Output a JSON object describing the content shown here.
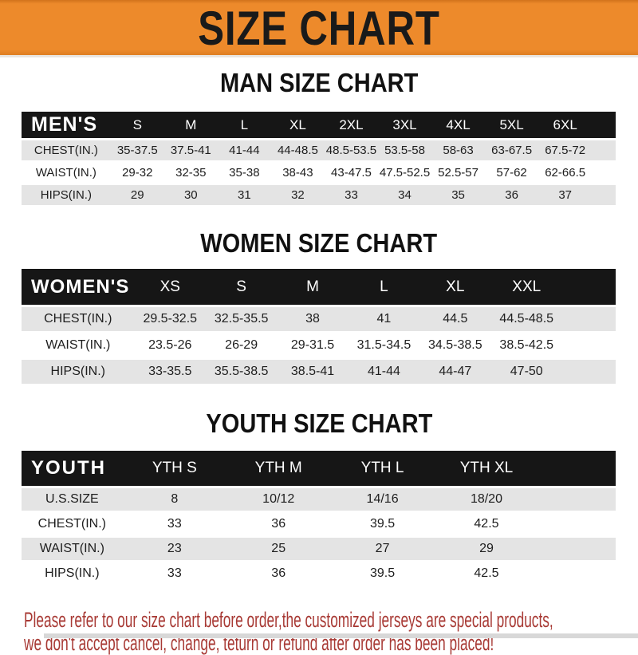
{
  "banner": {
    "title": "SIZE CHART"
  },
  "sections": {
    "man": {
      "heading": "MAN SIZE CHART",
      "table": {
        "label": "MEN'S",
        "columns": [
          "S",
          "M",
          "L",
          "XL",
          "2XL",
          "3XL",
          "4XL",
          "5XL",
          "6XL"
        ],
        "rows": [
          {
            "label": "CHEST(IN.)",
            "values": [
              "35-37.5",
              "37.5-41",
              "41-44",
              "44-48.5",
              "48.5-53.5",
              "53.5-58",
              "58-63",
              "63-67.5",
              "67.5-72"
            ]
          },
          {
            "label": "WAIST(IN.)",
            "values": [
              "29-32",
              "32-35",
              "35-38",
              "38-43",
              "43-47.5",
              "47.5-52.5",
              "52.5-57",
              "57-62",
              "62-66.5"
            ]
          },
          {
            "label": "HIPS(IN.)",
            "values": [
              "29",
              "30",
              "31",
              "32",
              "33",
              "34",
              "35",
              "36",
              "37"
            ]
          }
        ]
      }
    },
    "women": {
      "heading": "WOMEN SIZE CHART",
      "table": {
        "label": "WOMEN'S",
        "columns": [
          "XS",
          "S",
          "M",
          "L",
          "XL",
          "XXL"
        ],
        "rows": [
          {
            "label": "CHEST(IN.)",
            "values": [
              "29.5-32.5",
              "32.5-35.5",
              "38",
              "41",
              "44.5",
              "44.5-48.5"
            ]
          },
          {
            "label": "WAIST(IN.)",
            "values": [
              "23.5-26",
              "26-29",
              "29-31.5",
              "31.5-34.5",
              "34.5-38.5",
              "38.5-42.5"
            ]
          },
          {
            "label": "HIPS(IN.)",
            "values": [
              "33-35.5",
              "35.5-38.5",
              "38.5-41",
              "41-44",
              "44-47",
              "47-50"
            ]
          }
        ]
      }
    },
    "youth": {
      "heading": "YOUTH SIZE CHART",
      "table": {
        "label": "YOUTH",
        "columns": [
          "YTH S",
          "YTH M",
          "YTH L",
          "YTH XL"
        ],
        "rows": [
          {
            "label": "U.S.SIZE",
            "values": [
              "8",
              "10/12",
              "14/16",
              "18/20"
            ]
          },
          {
            "label": "CHEST(IN.)",
            "values": [
              "33",
              "36",
              "39.5",
              "42.5"
            ]
          },
          {
            "label": "WAIST(IN.)",
            "values": [
              "23",
              "25",
              "27",
              "29"
            ]
          },
          {
            "label": "HIPS(IN.)",
            "values": [
              "33",
              "36",
              "39.5",
              "42.5"
            ]
          }
        ]
      }
    }
  },
  "note": {
    "line1": "Please refer to our size chart before order,the customized jerseys are special products,",
    "line2": "we don't accept cancel, change, teturn or refund after order has been placed!"
  },
  "colors": {
    "banner_orange": "#ED8A2B",
    "header_black": "#161616",
    "row_gray": "#E4E4E4",
    "note_red": "#A83A35"
  }
}
